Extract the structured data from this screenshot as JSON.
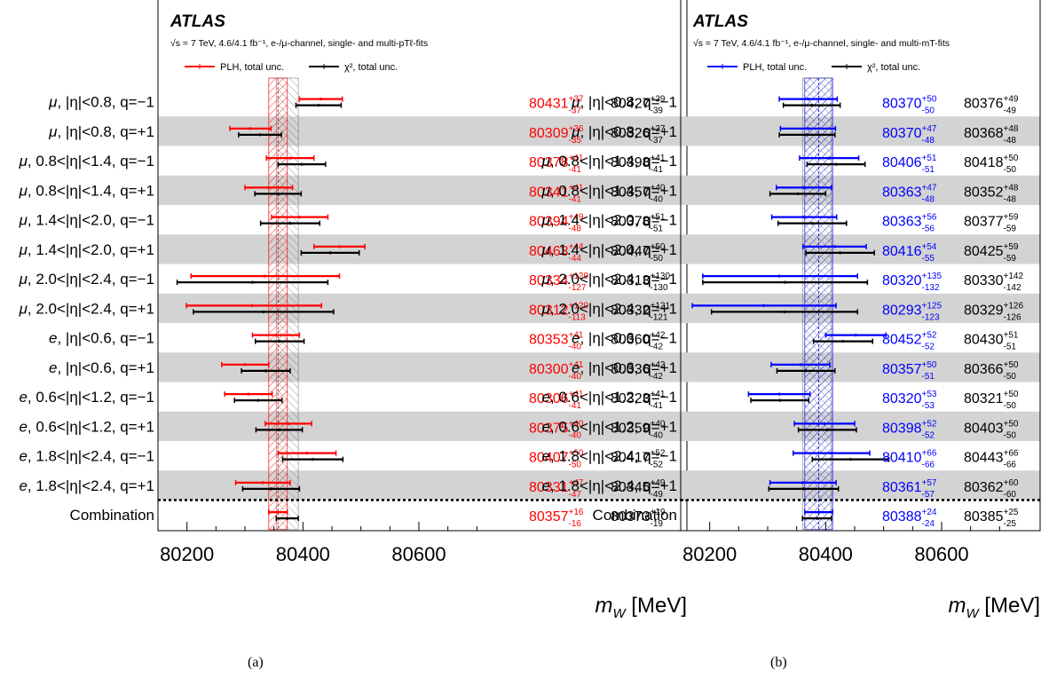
{
  "panels": [
    {
      "caption": "(a)",
      "atlas": "ATLAS",
      "energy_text": "√s = 7 TeV, 4.6/4.1 fb⁻¹, e-/μ-channel, single- and multi-pTℓ-fits",
      "legend": [
        {
          "label": "PLH, total unc.",
          "color": "#ff0000"
        },
        {
          "label": "χ², total unc.",
          "color": "#000000"
        }
      ],
      "xlabel": "mW [MeV]",
      "accent": "#ff0000"
    },
    {
      "caption": "(b)",
      "atlas": "ATLAS",
      "energy_text": "√s = 7 TeV, 4.6/4.1 fb⁻¹, e-/μ-channel, single- and multi-mT-fits",
      "legend": [
        {
          "label": "PLH, total unc.",
          "color": "#0000ff"
        },
        {
          "label": "χ², total unc.",
          "color": "#000000"
        }
      ],
      "xlabel": "mW [MeV]",
      "accent": "#0000ff"
    }
  ],
  "chart_data": [
    {
      "type": "scatter",
      "subtype": "errorbar",
      "xlim": [
        80150,
        80750
      ],
      "xticks": [
        80200,
        80400,
        80600
      ],
      "xlabel": "mW [MeV]",
      "categories": [
        "μ, |η|<0.8, q=−1",
        "μ, |η|<0.8, q=+1",
        "μ, 0.8<|η|<1.4, q=−1",
        "μ, 0.8<|η|<1.4, q=+1",
        "μ, 1.4<|η|<2.0, q=−1",
        "μ, 1.4<|η|<2.0, q=+1",
        "μ, 2.0<|η|<2.4, q=−1",
        "μ, 2.0<|η|<2.4, q=+1",
        "e, |η|<0.6, q=−1",
        "e, |η|<0.6, q=+1",
        "e, 0.6<|η|<1.2, q=−1",
        "e, 0.6<|η|<1.2, q=+1",
        "e, 1.8<|η|<2.4, q=−1",
        "e, 1.8<|η|<2.4, q=+1",
        "Combination"
      ],
      "series": [
        {
          "name": "PLH, total unc.",
          "color": "#ff0000",
          "values": [
            80431,
            80309,
            80378,
            80341,
            80394,
            80463,
            80334,
            80312,
            80353,
            80300,
            80306,
            80375,
            80407,
            80331,
            80357
          ],
          "err_up": [
            37,
            36,
            41,
            41,
            49,
            44,
            129,
            120,
            41,
            41,
            41,
            40,
            50,
            47,
            16
          ],
          "err_down": [
            37,
            35,
            41,
            41,
            48,
            44,
            127,
            113,
            40,
            40,
            41,
            40,
            50,
            47,
            16
          ]
        },
        {
          "name": "χ², total unc.",
          "color": "#000000",
          "values": [
            80427,
            80326,
            80398,
            80357,
            80378,
            80447,
            80313,
            80332,
            80360,
            80336,
            80323,
            80359,
            80417,
            80345,
            80373
          ],
          "err_up": [
            39,
            37,
            41,
            40,
            51,
            50,
            130,
            121,
            42,
            42,
            41,
            40,
            52,
            49,
            19
          ],
          "err_down": [
            39,
            37,
            41,
            40,
            51,
            50,
            130,
            121,
            42,
            42,
            41,
            40,
            52,
            49,
            19
          ]
        }
      ]
    },
    {
      "type": "scatter",
      "subtype": "errorbar",
      "xlim": [
        80150,
        80750
      ],
      "xticks": [
        80200,
        80400,
        80600
      ],
      "xlabel": "mW [MeV]",
      "categories": [
        "μ, |η|<0.8, q=−1",
        "μ, |η|<0.8, q=+1",
        "μ, 0.8<|η|<1.4, q=−1",
        "μ, 0.8<|η|<1.4, q=+1",
        "μ, 1.4<|η|<2.0, q=−1",
        "μ, 1.4<|η|<2.0, q=+1",
        "μ, 2.0<|η|<2.4, q=−1",
        "μ, 2.0<|η|<2.4, q=+1",
        "e, |η|<0.6, q=−1",
        "e, |η|<0.6, q=+1",
        "e, 0.6<|η|<1.2, q=−1",
        "e, 0.6<|η|<1.2, q=+1",
        "e, 1.8<|η|<2.4, q=−1",
        "e, 1.8<|η|<2.4, q=+1",
        "Combination"
      ],
      "series": [
        {
          "name": "PLH, total unc.",
          "color": "#0000ff",
          "values": [
            80370,
            80370,
            80406,
            80363,
            80363,
            80416,
            80320,
            80293,
            80452,
            80357,
            80320,
            80398,
            80410,
            80361,
            80388
          ],
          "err_up": [
            50,
            47,
            51,
            47,
            56,
            54,
            135,
            125,
            52,
            50,
            53,
            52,
            66,
            57,
            24
          ],
          "err_down": [
            50,
            48,
            51,
            48,
            56,
            55,
            132,
            123,
            52,
            51,
            53,
            52,
            66,
            57,
            24
          ]
        },
        {
          "name": "χ², total unc.",
          "color": "#000000",
          "values": [
            80376,
            80368,
            80418,
            80352,
            80377,
            80425,
            80330,
            80329,
            80430,
            80366,
            80321,
            80403,
            80443,
            80362,
            80385
          ],
          "err_up": [
            49,
            48,
            50,
            48,
            59,
            59,
            142,
            126,
            51,
            50,
            50,
            50,
            66,
            60,
            25
          ],
          "err_down": [
            49,
            48,
            50,
            48,
            59,
            59,
            142,
            126,
            51,
            50,
            50,
            50,
            66,
            60,
            25
          ]
        }
      ]
    }
  ]
}
